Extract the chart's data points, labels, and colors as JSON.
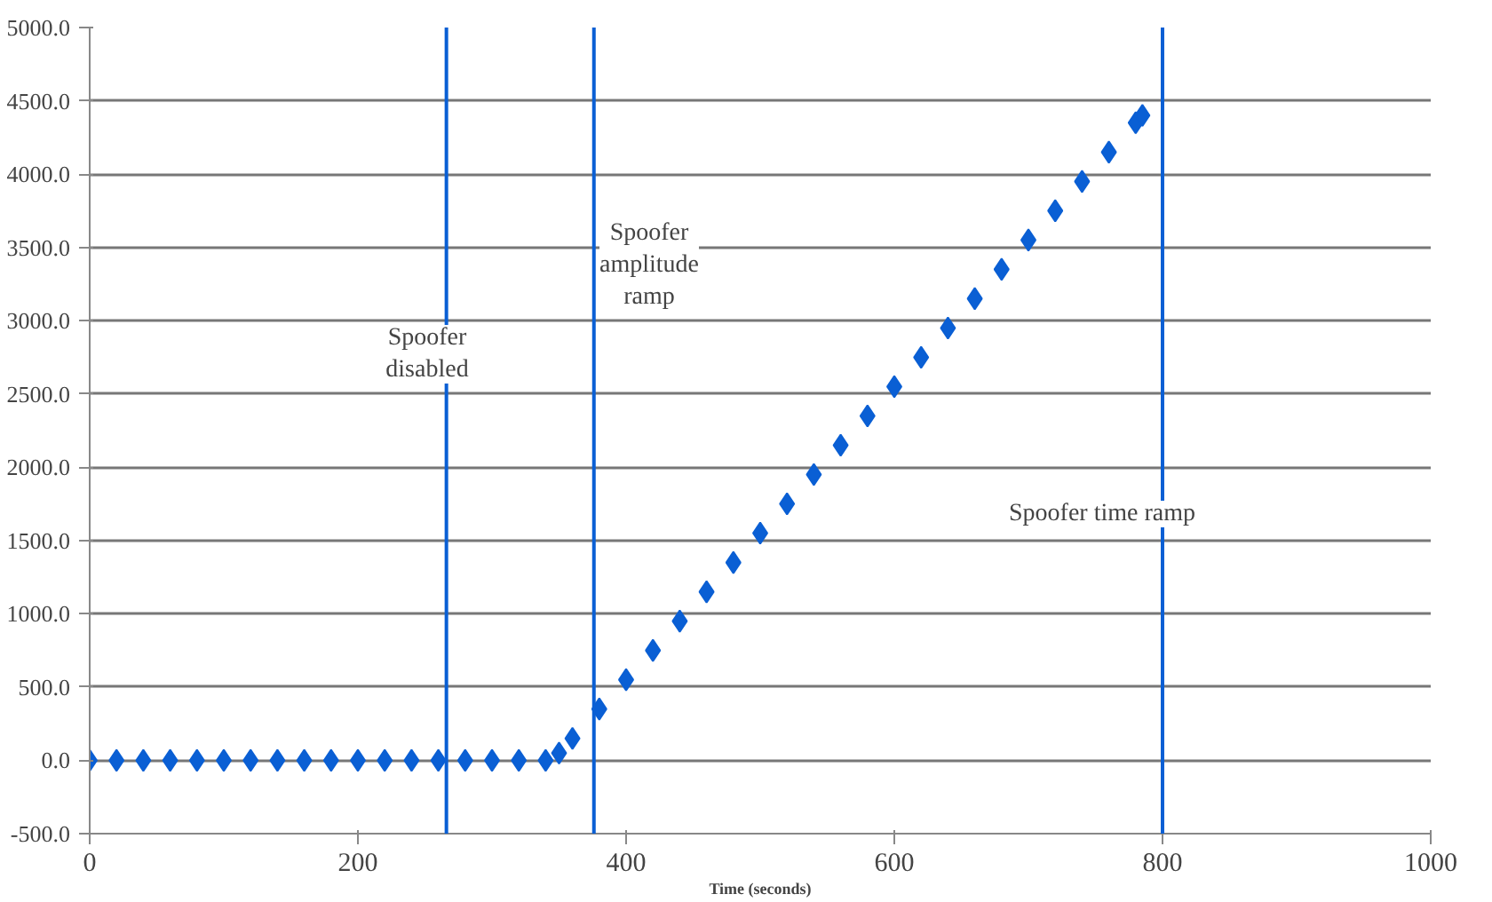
{
  "chart_data": {
    "type": "scatter",
    "xlabel": "Time (seconds)",
    "x": [
      0,
      20,
      40,
      60,
      80,
      100,
      120,
      140,
      160,
      180,
      200,
      220,
      240,
      260,
      280,
      300,
      320,
      340,
      350,
      360,
      380,
      400,
      420,
      440,
      460,
      480,
      500,
      520,
      540,
      560,
      580,
      600,
      620,
      640,
      660,
      680,
      700,
      720,
      740,
      760,
      780,
      785
    ],
    "series": [
      {
        "color": "#0a5fd4",
        "values": [
          0,
          0,
          0,
          0,
          0,
          0,
          0,
          0,
          0,
          0,
          0,
          0,
          0,
          0,
          0,
          0,
          0,
          0,
          50,
          150,
          350,
          550,
          750,
          950,
          1150,
          1350,
          1550,
          1750,
          1950,
          2150,
          2350,
          2550,
          2750,
          2950,
          3150,
          3350,
          3550,
          3750,
          3950,
          4150,
          4350,
          4400
        ]
      }
    ],
    "marker": "diamond",
    "grid": "y",
    "xlim": [
      0,
      1000
    ],
    "xticks": [
      0,
      200,
      400,
      600,
      800,
      1000
    ],
    "ylim": [
      -500,
      5000
    ],
    "yticks": [
      {
        "value": -500,
        "label": "-500.0"
      },
      {
        "value": 0,
        "label": "0.0"
      },
      {
        "value": 500,
        "label": "500.0"
      },
      {
        "value": 1000,
        "label": "1000.0"
      },
      {
        "value": 1500,
        "label": "1500.0"
      },
      {
        "value": 2000,
        "label": "2000.0"
      },
      {
        "value": 2500,
        "label": "2500.0"
      },
      {
        "value": 3000,
        "label": "3000.0"
      },
      {
        "value": 3500,
        "label": "3500.0"
      },
      {
        "value": 4000,
        "label": "4000.0"
      },
      {
        "value": 4500,
        "label": "4500.0"
      },
      {
        "value": 5000,
        "label": "5000.0"
      }
    ],
    "ref_lines": [
      {
        "axis": "x",
        "value": 266,
        "color": "#0a5fd4"
      },
      {
        "axis": "x",
        "value": 376,
        "color": "#0a5fd4"
      },
      {
        "axis": "x",
        "value": 800,
        "color": "#0a5fd4"
      }
    ],
    "annotations": [
      "Spoofer\ndisabled",
      "Spoofer\namplitude\nramp",
      "Spoofer time ramp"
    ]
  }
}
